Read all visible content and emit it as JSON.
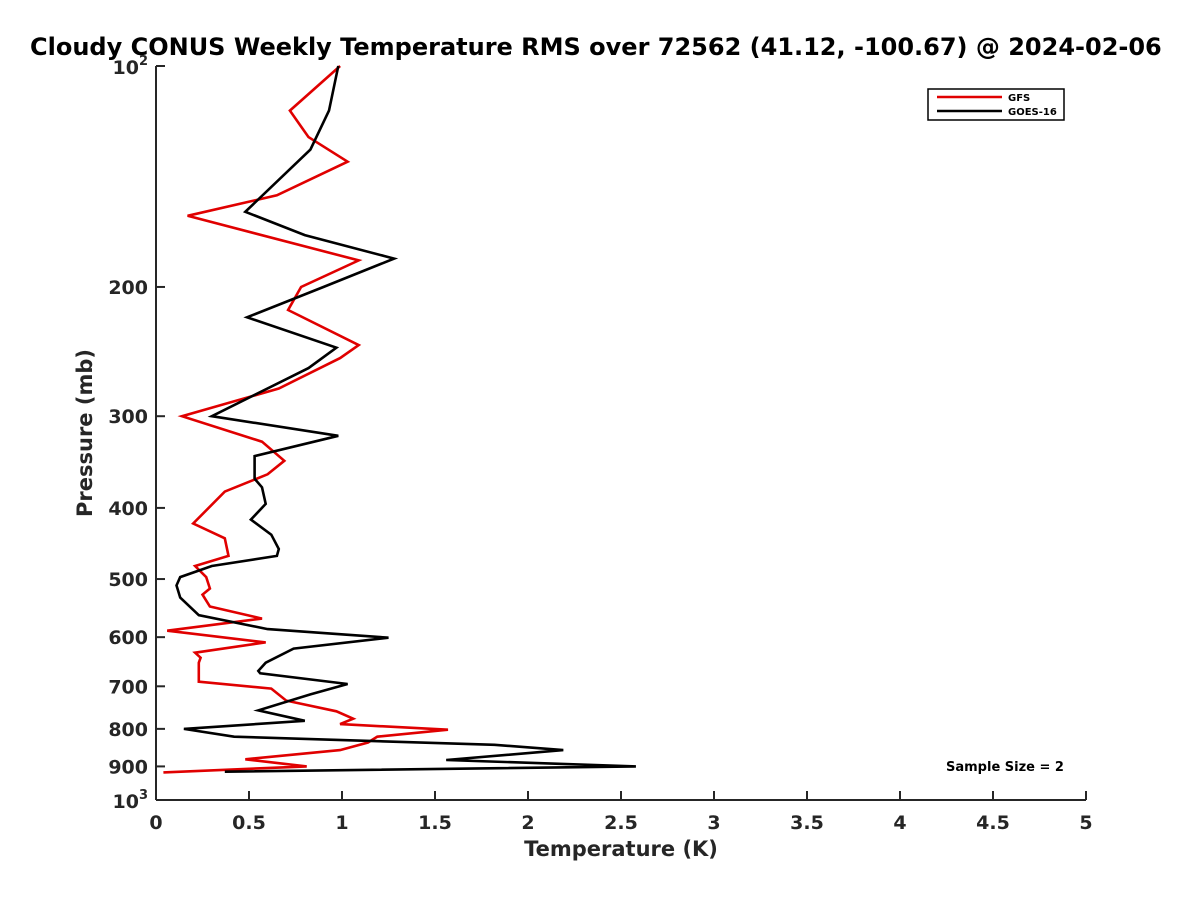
{
  "chart_data": {
    "type": "line",
    "title": "Cloudy CONUS Weekly Temperature RMS over 72562 (41.12, -100.67) @ 2024-02-06",
    "xlabel": "Temperature (K)",
    "ylabel": "Pressure (mb)",
    "xlim": [
      0,
      5
    ],
    "ylim": [
      100,
      1000
    ],
    "y_scale": "log",
    "y_reversed": true,
    "x_ticks": [
      "0",
      "0.5",
      "1",
      "1.5",
      "2",
      "2.5",
      "3",
      "3.5",
      "4",
      "4.5",
      "5"
    ],
    "y_ticks": [
      {
        "value": 100,
        "base": "10",
        "exp": "2"
      },
      {
        "value": 200,
        "label": "200"
      },
      {
        "value": 300,
        "label": "300"
      },
      {
        "value": 400,
        "label": "400"
      },
      {
        "value": 500,
        "label": "500"
      },
      {
        "value": 600,
        "label": "600"
      },
      {
        "value": 700,
        "label": "700"
      },
      {
        "value": 800,
        "label": "800"
      },
      {
        "value": 900,
        "label": "900"
      },
      {
        "value": 1000,
        "base": "10",
        "exp": "3"
      }
    ],
    "legend_position": "top-right",
    "annotation": "Sample Size = 2",
    "series": [
      {
        "name": "GFS",
        "color": "#e00000",
        "points": [
          [
            0.99,
            100
          ],
          [
            0.72,
            115
          ],
          [
            0.82,
            125
          ],
          [
            1.03,
            135
          ],
          [
            0.65,
            150
          ],
          [
            0.17,
            160
          ],
          [
            1.09,
            184
          ],
          [
            0.78,
            200
          ],
          [
            0.71,
            215
          ],
          [
            1.09,
            240
          ],
          [
            0.99,
            250
          ],
          [
            0.66,
            275
          ],
          [
            0.14,
            300
          ],
          [
            0.57,
            325
          ],
          [
            0.69,
            345
          ],
          [
            0.6,
            360
          ],
          [
            0.37,
            380
          ],
          [
            0.2,
            420
          ],
          [
            0.37,
            440
          ],
          [
            0.39,
            465
          ],
          [
            0.21,
            480
          ],
          [
            0.27,
            497
          ],
          [
            0.29,
            515
          ],
          [
            0.25,
            525
          ],
          [
            0.29,
            545
          ],
          [
            0.57,
            566
          ],
          [
            0.06,
            588
          ],
          [
            0.59,
            610
          ],
          [
            0.21,
            630
          ],
          [
            0.24,
            640
          ],
          [
            0.23,
            650
          ],
          [
            0.23,
            690
          ],
          [
            0.62,
            705
          ],
          [
            0.7,
            732
          ],
          [
            0.97,
            757
          ],
          [
            1.06,
            775
          ],
          [
            0.99,
            788
          ],
          [
            1.57,
            802
          ],
          [
            1.19,
            820
          ],
          [
            1.14,
            835
          ],
          [
            0.99,
            855
          ],
          [
            0.48,
            880
          ],
          [
            0.81,
            900
          ],
          [
            0.04,
            917
          ]
        ]
      },
      {
        "name": "GOES-16",
        "color": "#000000",
        "points": [
          [
            0.98,
            100
          ],
          [
            0.93,
            115
          ],
          [
            0.83,
            130
          ],
          [
            0.48,
            158
          ],
          [
            0.8,
            170
          ],
          [
            1.28,
            183
          ],
          [
            0.9,
            200
          ],
          [
            0.49,
            220
          ],
          [
            0.97,
            242
          ],
          [
            0.82,
            258
          ],
          [
            0.3,
            300
          ],
          [
            0.98,
            319
          ],
          [
            0.53,
            340
          ],
          [
            0.53,
            365
          ],
          [
            0.57,
            375
          ],
          [
            0.59,
            395
          ],
          [
            0.51,
            415
          ],
          [
            0.62,
            435
          ],
          [
            0.66,
            455
          ],
          [
            0.65,
            465
          ],
          [
            0.3,
            480
          ],
          [
            0.13,
            497
          ],
          [
            0.11,
            510
          ],
          [
            0.13,
            530
          ],
          [
            0.23,
            560
          ],
          [
            0.6,
            585
          ],
          [
            1.25,
            601
          ],
          [
            0.74,
            622
          ],
          [
            0.59,
            650
          ],
          [
            0.55,
            667
          ],
          [
            0.56,
            672
          ],
          [
            1.03,
            695
          ],
          [
            0.83,
            718
          ],
          [
            0.55,
            755
          ],
          [
            0.8,
            780
          ],
          [
            0.15,
            800
          ],
          [
            0.42,
            820
          ],
          [
            1.82,
            841
          ],
          [
            2.19,
            855
          ],
          [
            1.56,
            882
          ],
          [
            2.58,
            900
          ],
          [
            0.37,
            915
          ]
        ]
      }
    ]
  },
  "colors": {
    "axis": "#262626",
    "gfs": "#e00000",
    "goes16": "#000000"
  }
}
